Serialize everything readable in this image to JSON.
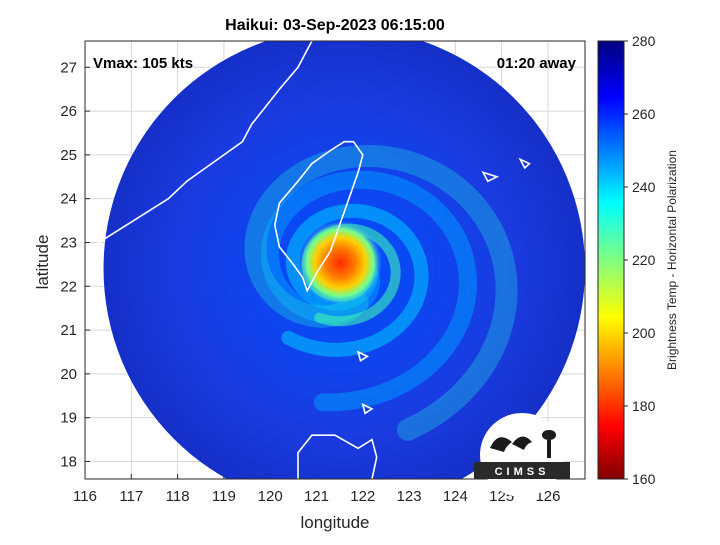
{
  "chart_data": {
    "type": "heatmap",
    "title": "Haikui: 03-Sep-2023 06:15:00",
    "xlabel": "longitude",
    "ylabel": "latitude",
    "xlim": [
      116,
      126.8
    ],
    "ylim": [
      17.6,
      27.6
    ],
    "xticks": [
      "116",
      "117",
      "118",
      "119",
      "120",
      "121",
      "122",
      "123",
      "124",
      "125",
      "126"
    ],
    "yticks": [
      "18",
      "19",
      "20",
      "21",
      "22",
      "23",
      "24",
      "25",
      "26",
      "27"
    ],
    "grid": true,
    "annotations": {
      "top_left": "Vmax: 105 kts",
      "top_right": "01:20 away"
    },
    "storm_center": {
      "lon": 121.6,
      "lat": 22.4
    },
    "scan_radius_deg": 5.2,
    "colorbar": {
      "label": "Brightness Temp - Horizontal Polarization",
      "min": 160,
      "max": 280,
      "ticks": [
        "280",
        "260",
        "240",
        "220",
        "200",
        "180",
        "160"
      ],
      "colormap": "jet"
    },
    "logo_text": "CIMSS"
  },
  "colors": {
    "background_field": "#1f3fd8",
    "coastline": "#ffffff",
    "axes": "#262626",
    "grid": "#d0d0d0"
  }
}
